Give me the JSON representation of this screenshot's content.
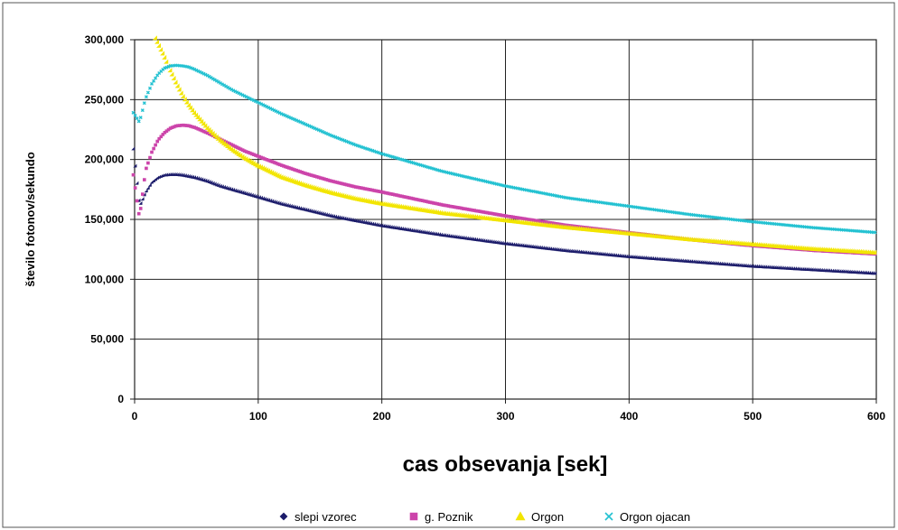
{
  "chart_data": {
    "type": "scatter",
    "title": "",
    "xlabel": "cas obsevanja [sek]",
    "ylabel": "število fotonov/sekundo",
    "xlim": [
      0,
      600
    ],
    "ylim": [
      0,
      300000
    ],
    "x_ticks": [
      "0",
      "100",
      "200",
      "300",
      "400",
      "500",
      "600"
    ],
    "y_ticks": [
      "0",
      "50,000",
      "100,000",
      "150,000",
      "200,000",
      "250,000",
      "300,000"
    ],
    "grid": true,
    "legend_position": "bottom",
    "series": [
      {
        "name": "slepi vzorec",
        "color": "#1c1c6b",
        "marker": "diamond",
        "x": [
          0,
          5,
          10,
          15,
          20,
          25,
          30,
          35,
          40,
          45,
          50,
          60,
          70,
          80,
          90,
          100,
          120,
          140,
          160,
          180,
          200,
          250,
          300,
          350,
          400,
          450,
          500,
          550,
          600
        ],
        "y": [
          208000,
          160000,
          172000,
          180000,
          184000,
          186000,
          186500,
          186500,
          186000,
          185000,
          184000,
          181000,
          177000,
          174000,
          171000,
          168000,
          162000,
          157000,
          152000,
          148000,
          144000,
          136000,
          129000,
          123000,
          118000,
          114000,
          110000,
          107000,
          104000
        ]
      },
      {
        "name": "g. Poznik",
        "color": "#cc44aa",
        "marker": "square",
        "x": [
          0,
          5,
          10,
          15,
          20,
          25,
          30,
          35,
          40,
          45,
          50,
          60,
          70,
          80,
          90,
          100,
          120,
          140,
          160,
          180,
          200,
          250,
          300,
          350,
          400,
          450,
          500,
          550,
          600
        ],
        "y": [
          186000,
          150000,
          190000,
          205000,
          215000,
          221000,
          225000,
          227000,
          227500,
          227000,
          225500,
          221000,
          216000,
          211000,
          206000,
          202000,
          194000,
          187000,
          181000,
          176000,
          172000,
          161000,
          152000,
          144000,
          138000,
          132000,
          127000,
          123000,
          120000
        ]
      },
      {
        "name": "Orgon",
        "color": "#f2e500",
        "marker": "triangle",
        "x": [
          18,
          25,
          30,
          35,
          40,
          45,
          50,
          60,
          70,
          80,
          90,
          100,
          120,
          140,
          160,
          180,
          200,
          250,
          300,
          350,
          400,
          450,
          500,
          550,
          600
        ],
        "y": [
          300000,
          285000,
          273000,
          262000,
          252000,
          244000,
          237000,
          225000,
          215000,
          207000,
          200000,
          194000,
          184000,
          177000,
          171000,
          166000,
          162000,
          154000,
          148000,
          142000,
          137000,
          132000,
          128000,
          124000,
          121000
        ]
      },
      {
        "name": "Orgon ojacan",
        "color": "#22c1d1",
        "marker": "x",
        "x": [
          0,
          5,
          10,
          15,
          20,
          25,
          30,
          35,
          40,
          45,
          50,
          60,
          70,
          80,
          90,
          100,
          120,
          140,
          160,
          180,
          200,
          250,
          300,
          350,
          400,
          450,
          500,
          550,
          600
        ],
        "y": [
          238000,
          230000,
          250000,
          262000,
          270000,
          275000,
          277000,
          277500,
          277000,
          276000,
          274000,
          269000,
          263000,
          257000,
          252000,
          247000,
          237000,
          228000,
          219000,
          211000,
          204000,
          189000,
          177000,
          167000,
          160000,
          153000,
          147000,
          142000,
          138000
        ]
      }
    ]
  }
}
